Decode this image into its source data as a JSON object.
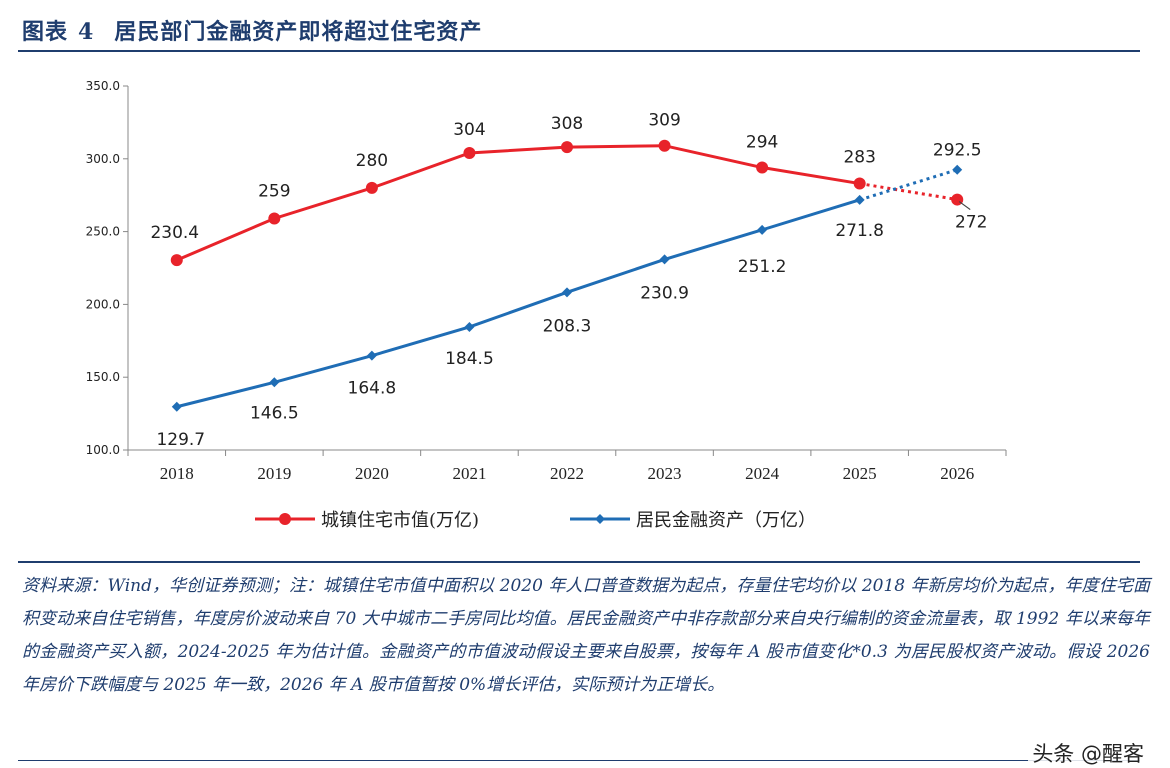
{
  "header": {
    "figure_label": "图表",
    "figure_number": "4",
    "title": "居民部门金融资产即将超过住宅资产"
  },
  "chart_data": {
    "type": "line",
    "title": "居民部门金融资产即将超过住宅资产",
    "categories": [
      "2018",
      "2019",
      "2020",
      "2021",
      "2022",
      "2023",
      "2024",
      "2025",
      "2026"
    ],
    "ylim": [
      100,
      350
    ],
    "yticks": [
      "100.0",
      "150.0",
      "200.0",
      "250.0",
      "300.0",
      "350.0"
    ],
    "ytick_values": [
      100,
      150,
      200,
      250,
      300,
      350
    ],
    "series": [
      {
        "name": "城镇住宅市值(万亿)",
        "color": "#e8232a",
        "values": [
          230.4,
          259,
          280,
          304,
          308,
          309,
          294,
          283,
          272
        ],
        "labels": [
          "230.4",
          "259",
          "280",
          "304",
          "308",
          "309",
          "294",
          "283",
          "272"
        ],
        "forecast_from_index": 7
      },
      {
        "name": "居民金融资产（万亿）",
        "color": "#1f6db5",
        "values": [
          129.7,
          146.5,
          164.8,
          184.5,
          208.3,
          230.9,
          251.2,
          271.8,
          292.5
        ],
        "labels": [
          "129.7",
          "146.5",
          "164.8",
          "184.5",
          "208.3",
          "230.9",
          "251.2",
          "271.8",
          "292.5"
        ],
        "forecast_from_index": 7
      }
    ],
    "grid": false,
    "legend_position": "bottom"
  },
  "source_note": "资料来源：Wind，华创证券预测；注：城镇住宅市值中面积以 2020 年人口普查数据为起点，存量住宅均价以 2018 年新房均价为起点，年度住宅面积变动来自住宅销售，年度房价波动来自 70 大中城市二手房同比均值。居民金融资产中非存款部分来自央行编制的资金流量表，取 1992 年以来每年的金融资产买入额，2024-2025 年为估计值。金融资产的市值波动假设主要来自股票，按每年 A 股市值变化*0.3 为居民股权资产波动。假设 2026 年房价下跌幅度与 2025 年一致，2026 年 A 股市值暂按 0%增长评估，实际预计为正增长。",
  "watermark": "头条 @醒客"
}
